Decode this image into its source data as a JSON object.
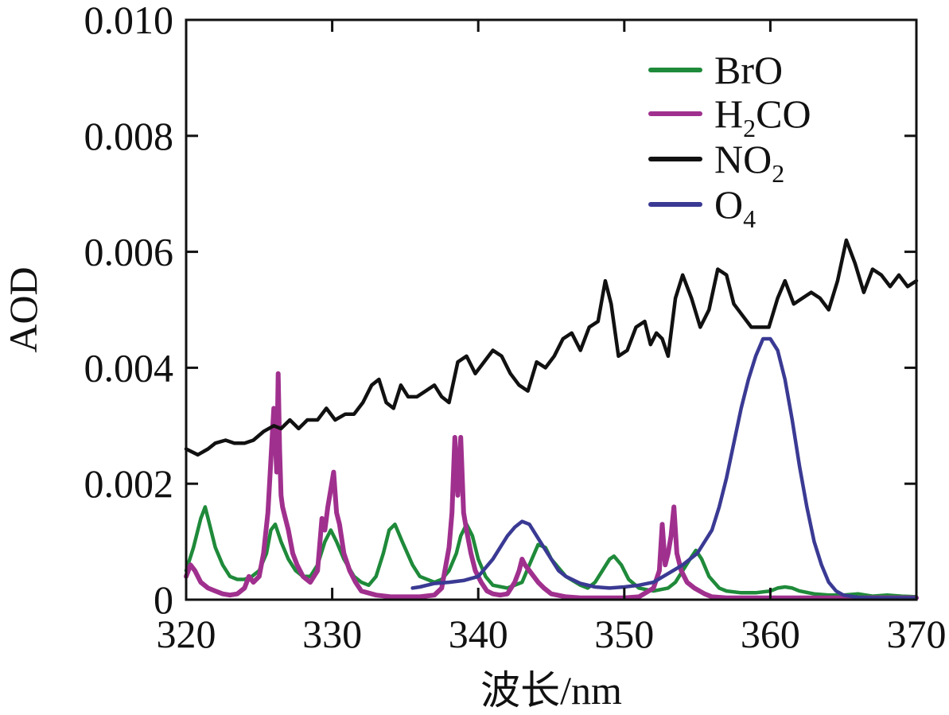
{
  "chart_data": {
    "type": "line",
    "title": "",
    "xlabel": "波长/nm",
    "ylabel": "AOD",
    "xlim": [
      320,
      370
    ],
    "ylim": [
      0,
      0.01
    ],
    "x_ticks": [
      320,
      330,
      340,
      350,
      360,
      370
    ],
    "x_tick_labels": [
      "320",
      "330",
      "340",
      "350",
      "360",
      "370"
    ],
    "y_ticks": [
      0,
      0.002,
      0.004,
      0.006,
      0.008,
      0.01
    ],
    "y_tick_labels": [
      "0",
      "0.002",
      "0.004",
      "0.006",
      "0.008",
      "0.010"
    ],
    "grid": false,
    "legend_position": "top-right",
    "series": [
      {
        "name": "BrO",
        "label_main": "BrO",
        "label_sub": "",
        "color": "#1f8a3a",
        "x": [
          320,
          320.5,
          321,
          321.3,
          321.6,
          322,
          322.5,
          323,
          323.5,
          324,
          324.5,
          325,
          325.5,
          325.8,
          326.1,
          326.5,
          327,
          327.5,
          328,
          328.5,
          329,
          329.5,
          329.9,
          330.3,
          330.8,
          331.5,
          332,
          332.5,
          333,
          333.5,
          333.9,
          334.3,
          334.8,
          335.5,
          336,
          337,
          337.5,
          338,
          338.5,
          338.8,
          339.2,
          339.6,
          340,
          340.5,
          341,
          342,
          343,
          343.5,
          344.1,
          344.6,
          345,
          346,
          347,
          347.5,
          348,
          348.5,
          349,
          349.3,
          349.8,
          350.3,
          351,
          352,
          353,
          353.5,
          354,
          354.5,
          354.9,
          355.3,
          355.8,
          356.5,
          357,
          358,
          359,
          360,
          360.5,
          361,
          361.5,
          362,
          363,
          364,
          365,
          366,
          367,
          368,
          369,
          370
        ],
        "values": [
          0.0005,
          0.0009,
          0.0014,
          0.0016,
          0.0013,
          0.0009,
          0.0006,
          0.0004,
          0.00035,
          0.00035,
          0.0004,
          0.0005,
          0.0008,
          0.0012,
          0.0013,
          0.001,
          0.0007,
          0.0005,
          0.0004,
          0.0004,
          0.0006,
          0.001,
          0.0012,
          0.001,
          0.0007,
          0.0004,
          0.0003,
          0.00025,
          0.0004,
          0.0008,
          0.0012,
          0.0013,
          0.001,
          0.0006,
          0.0004,
          0.0003,
          0.00035,
          0.0005,
          0.0008,
          0.0011,
          0.0013,
          0.0011,
          0.0007,
          0.0004,
          0.00025,
          0.0002,
          0.0003,
          0.0006,
          0.00095,
          0.0009,
          0.0007,
          0.0004,
          0.00025,
          0.0002,
          0.0003,
          0.0005,
          0.0007,
          0.00075,
          0.0006,
          0.00035,
          0.0002,
          0.00015,
          0.0002,
          0.0003,
          0.0005,
          0.0007,
          0.00085,
          0.0007,
          0.0004,
          0.0002,
          0.00015,
          0.00012,
          0.00012,
          0.00015,
          0.0002,
          0.00022,
          0.0002,
          0.00015,
          0.0001,
          8e-05,
          8e-05,
          0.0001,
          6e-05,
          8e-05,
          6e-05,
          5e-05
        ]
      },
      {
        "name": "H2CO",
        "label_main": "H",
        "label_sub": "2",
        "label_rest": "CO",
        "color": "#a0308e",
        "x": [
          320,
          320.3,
          320.6,
          321,
          321.5,
          322,
          322.5,
          323,
          323.5,
          324,
          324.3,
          324.6,
          325,
          325.3,
          325.6,
          325.8,
          326,
          326.1,
          326.2,
          326.3,
          326.4,
          326.5,
          326.6,
          326.8,
          327,
          327.3,
          327.6,
          328,
          328.5,
          329,
          329.3,
          329.5,
          329.7,
          329.9,
          330.1,
          330.3,
          330.5,
          330.8,
          331.2,
          331.6,
          332,
          333,
          334,
          335,
          336,
          337,
          337.5,
          338,
          338.2,
          338.4,
          338.6,
          338.8,
          339,
          339.2,
          339.5,
          339.8,
          340.2,
          340.6,
          341,
          341.5,
          342,
          342.5,
          342.8,
          343,
          343.2,
          343.5,
          343.8,
          344.1,
          344.5,
          345,
          346,
          347,
          348,
          349,
          350,
          351,
          352,
          352.4,
          352.6,
          352.8,
          353,
          353.2,
          353.4,
          353.6,
          353.9,
          354.3,
          354.8,
          355.5,
          356,
          357,
          358,
          359,
          360,
          362,
          364,
          366,
          368,
          370
        ],
        "values": [
          0.0004,
          0.0006,
          0.0005,
          0.0003,
          0.0002,
          0.00015,
          0.0001,
          8e-05,
          0.0001,
          0.0002,
          0.0004,
          0.0003,
          0.0004,
          0.0008,
          0.0015,
          0.0024,
          0.0033,
          0.0028,
          0.0022,
          0.0039,
          0.0026,
          0.0018,
          0.0016,
          0.0014,
          0.0012,
          0.0008,
          0.0006,
          0.0004,
          0.0003,
          0.0005,
          0.0014,
          0.0012,
          0.0016,
          0.0019,
          0.0022,
          0.0015,
          0.0013,
          0.0008,
          0.0005,
          0.0003,
          0.00015,
          8e-05,
          5e-05,
          5e-05,
          5e-05,
          8e-05,
          0.0002,
          0.0009,
          0.0015,
          0.0028,
          0.0018,
          0.0028,
          0.0015,
          0.0012,
          0.0008,
          0.0005,
          0.0003,
          0.00015,
          0.0001,
          8e-05,
          0.0001,
          0.0003,
          0.0005,
          0.0007,
          0.0006,
          0.0005,
          0.0004,
          0.0003,
          0.0002,
          0.0001,
          5e-05,
          3e-05,
          3e-05,
          3e-05,
          3e-05,
          5e-05,
          0.0002,
          0.0005,
          0.0013,
          0.0006,
          0.0008,
          0.0011,
          0.0016,
          0.0008,
          0.0005,
          0.0003,
          0.0002,
          0.0001,
          5e-05,
          3e-05,
          3e-05,
          3e-05,
          3e-05,
          3e-05,
          3e-05,
          3e-05,
          3e-05,
          3e-05
        ]
      },
      {
        "name": "NO2",
        "label_main": "NO",
        "label_sub": "2",
        "color": "#111111",
        "x": [
          320,
          320.8,
          321.5,
          322,
          322.7,
          323.3,
          324,
          324.6,
          325.3,
          326,
          326.5,
          327.1,
          327.7,
          328.3,
          329,
          329.6,
          330.2,
          330.9,
          331.5,
          332.1,
          332.7,
          333.2,
          333.7,
          334.2,
          334.7,
          335.2,
          335.8,
          336.4,
          337,
          337.5,
          338,
          338.6,
          339.2,
          339.8,
          340.4,
          341,
          341.6,
          342.2,
          342.8,
          343.4,
          344,
          344.6,
          345.2,
          345.8,
          346.4,
          347,
          347.6,
          348.2,
          348.7,
          349.1,
          349.6,
          350.2,
          350.8,
          351.4,
          351.8,
          352.2,
          352.6,
          353,
          353.5,
          354,
          354.6,
          355.2,
          355.8,
          356.4,
          357,
          357.5,
          358.1,
          358.7,
          359.3,
          359.9,
          360.5,
          361,
          361.6,
          362.2,
          362.8,
          363.4,
          364,
          364.6,
          365.2,
          365.8,
          366.4,
          367,
          367.6,
          368.2,
          368.8,
          369.4,
          370
        ],
        "values": [
          0.0026,
          0.0025,
          0.0026,
          0.0027,
          0.00275,
          0.0027,
          0.0027,
          0.00275,
          0.0029,
          0.003,
          0.00295,
          0.0031,
          0.00295,
          0.0031,
          0.0031,
          0.0033,
          0.0031,
          0.0032,
          0.0032,
          0.0034,
          0.0037,
          0.0038,
          0.0034,
          0.0033,
          0.0037,
          0.0035,
          0.0035,
          0.0036,
          0.0037,
          0.0035,
          0.0034,
          0.0041,
          0.0042,
          0.0039,
          0.0041,
          0.0043,
          0.0042,
          0.0039,
          0.0037,
          0.0036,
          0.0041,
          0.004,
          0.0042,
          0.0045,
          0.0046,
          0.0043,
          0.0047,
          0.0048,
          0.0055,
          0.0051,
          0.0042,
          0.0043,
          0.0047,
          0.0048,
          0.0044,
          0.0046,
          0.0045,
          0.0042,
          0.0052,
          0.0056,
          0.0052,
          0.0047,
          0.005,
          0.0057,
          0.0056,
          0.0051,
          0.0049,
          0.0047,
          0.0047,
          0.0047,
          0.0052,
          0.0055,
          0.0051,
          0.0052,
          0.0053,
          0.0052,
          0.005,
          0.0055,
          0.0062,
          0.0058,
          0.0053,
          0.0057,
          0.0056,
          0.0054,
          0.0056,
          0.0054,
          0.0055
        ]
      },
      {
        "name": "O4",
        "label_main": "O",
        "label_sub": "4",
        "color": "#3a3a94",
        "x": [
          335.5,
          336,
          337,
          338,
          339,
          340,
          340.5,
          341,
          341.5,
          342,
          342.5,
          343,
          343.5,
          344,
          344.5,
          345,
          345.5,
          346,
          347,
          348,
          349,
          350,
          351,
          352,
          353,
          354,
          355,
          356,
          356.5,
          357,
          357.5,
          358,
          358.5,
          359,
          359.5,
          360,
          360.5,
          361,
          361.5,
          362,
          362.5,
          363,
          363.5,
          364,
          364.5,
          365,
          366,
          367,
          368,
          369,
          370
        ],
        "values": [
          0.0002,
          0.00022,
          0.00028,
          0.0003,
          0.00033,
          0.0004,
          0.00055,
          0.0007,
          0.0009,
          0.0011,
          0.00125,
          0.00135,
          0.0013,
          0.0011,
          0.0009,
          0.0007,
          0.0005,
          0.0004,
          0.00028,
          0.00022,
          0.0002,
          0.00022,
          0.00025,
          0.0003,
          0.00045,
          0.0006,
          0.0008,
          0.0012,
          0.0016,
          0.0021,
          0.0027,
          0.0033,
          0.0038,
          0.0042,
          0.0045,
          0.0045,
          0.0043,
          0.0038,
          0.0031,
          0.0023,
          0.0016,
          0.001,
          0.0006,
          0.0003,
          0.00015,
          8e-05,
          4e-05,
          3e-05,
          3e-05,
          3e-05,
          3e-05
        ]
      }
    ]
  }
}
